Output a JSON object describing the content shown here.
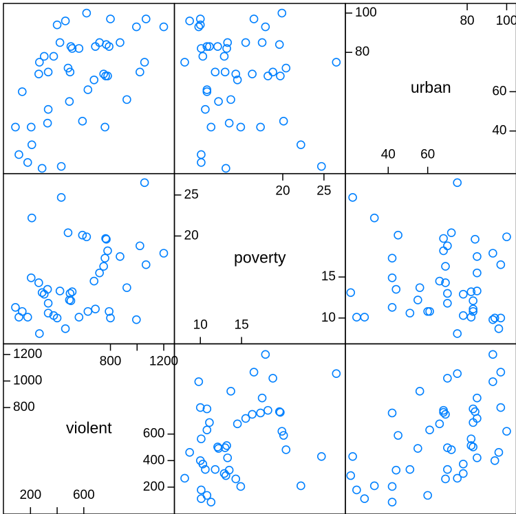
{
  "chart_data": {
    "type": "splom",
    "color": "#0080ff",
    "variables": [
      {
        "name": "violent",
        "lim": [
          -3,
          1280
        ],
        "ticks": [
          200,
          400,
          600,
          800,
          1000,
          1200
        ],
        "values": [
          87,
          113,
          138,
          179,
          205,
          210,
          262,
          267,
          287,
          303,
          328,
          333,
          333,
          374,
          400,
          421,
          431,
          462,
          482,
          492,
          497,
          503,
          513,
          564,
          590,
          621,
          631,
          677,
          687,
          718,
          749,
          759,
          764,
          769,
          779,
          790,
          800,
          872,
          923,
          995,
          1021,
          1056,
          1067,
          1200
        ]
      },
      {
        "name": "poverty",
        "lim": [
          6.85,
          27.6
        ],
        "ticks": [
          10,
          15,
          20,
          25
        ],
        "values": [
          11.3,
          10.1,
          10.8,
          10.1,
          14.9,
          22.2,
          14.3,
          8.1,
          13.1,
          12.9,
          13.5,
          10.6,
          11.8,
          10.3,
          10.0,
          13.3,
          24.7,
          8.7,
          20.4,
          12.2,
          13.0,
          12.1,
          13.2,
          10.1,
          20.1,
          19.9,
          10.8,
          14.5,
          11.1,
          15.5,
          16.3,
          17.3,
          19.7,
          19.6,
          18.2,
          10.8,
          10.0,
          17.5,
          13.7,
          9.8,
          18.8,
          26.5,
          16.5,
          17.9
        ]
      },
      {
        "name": "urban",
        "lim": [
          18.3,
          104.9
        ],
        "ticks": [
          40,
          60,
          80,
          100
        ],
        "values": [
          42,
          28,
          60,
          24,
          42,
          33,
          69,
          75,
          21,
          78,
          44,
          51,
          70,
          78,
          94,
          85,
          22,
          96,
          72,
          55,
          70,
          83,
          82,
          82,
          45,
          100,
          61,
          66,
          83,
          85,
          69,
          42,
          68,
          84,
          68,
          83,
          97,
          85,
          56,
          93,
          70,
          75,
          97,
          93
        ]
      }
    ]
  }
}
